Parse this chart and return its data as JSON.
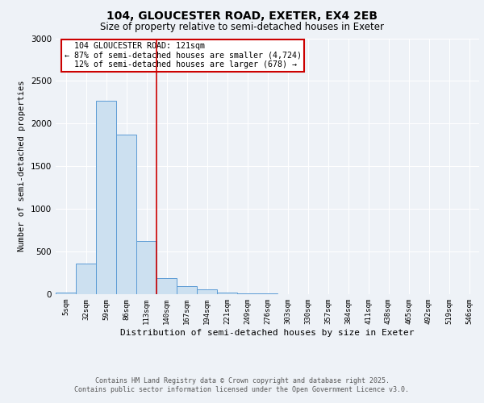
{
  "title_line1": "104, GLOUCESTER ROAD, EXETER, EX4 2EB",
  "title_line2": "Size of property relative to semi-detached houses in Exeter",
  "xlabel": "Distribution of semi-detached houses by size in Exeter",
  "ylabel": "Number of semi-detached properties",
  "categories": [
    "5sqm",
    "32sqm",
    "59sqm",
    "86sqm",
    "113sqm",
    "140sqm",
    "167sqm",
    "194sqm",
    "221sqm",
    "249sqm",
    "276sqm",
    "303sqm",
    "330sqm",
    "357sqm",
    "384sqm",
    "411sqm",
    "438sqm",
    "465sqm",
    "492sqm",
    "519sqm",
    "546sqm"
  ],
  "values": [
    15,
    360,
    2270,
    1870,
    620,
    185,
    95,
    60,
    20,
    8,
    5,
    3,
    2,
    0,
    0,
    0,
    0,
    0,
    0,
    0,
    0
  ],
  "bar_color": "#cce0f0",
  "bar_edge_color": "#5b9bd5",
  "property_label": "104 GLOUCESTER ROAD: 121sqm",
  "pct_smaller": 87,
  "pct_smaller_count": 4724,
  "pct_larger": 12,
  "pct_larger_count": 678,
  "vline_color": "#cc0000",
  "annotation_box_fill": "#ffffff",
  "ylim": [
    0,
    3000
  ],
  "background_color": "#eef2f7",
  "footer_line1": "Contains HM Land Registry data © Crown copyright and database right 2025.",
  "footer_line2": "Contains public sector information licensed under the Open Government Licence v3.0."
}
